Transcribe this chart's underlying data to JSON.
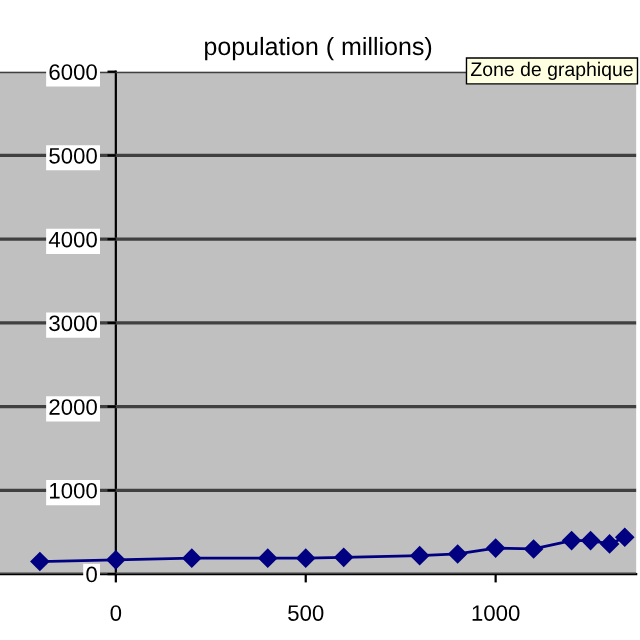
{
  "chart_data": {
    "type": "line",
    "title": "population ( millions)",
    "x": [
      -200,
      0,
      200,
      400,
      500,
      600,
      800,
      900,
      1000,
      1100,
      1200,
      1250,
      1300,
      1340
    ],
    "series": [
      {
        "color": "#000080",
        "values": [
          150,
          170,
          190,
          190,
          190,
          200,
          220,
          240,
          310,
          300,
          400,
          400,
          360,
          440
        ]
      }
    ],
    "xlim": [
      -305,
      1370
    ],
    "xticks": [
      0,
      500,
      1000
    ],
    "ylim": [
      0,
      6000
    ],
    "yticks": [
      0,
      1000,
      2000,
      3000,
      4000,
      5000,
      6000
    ],
    "grid": "y",
    "marker": "diamond",
    "line_style": "solid",
    "legend": false,
    "annotations": [
      "Zone de graphique"
    ]
  }
}
